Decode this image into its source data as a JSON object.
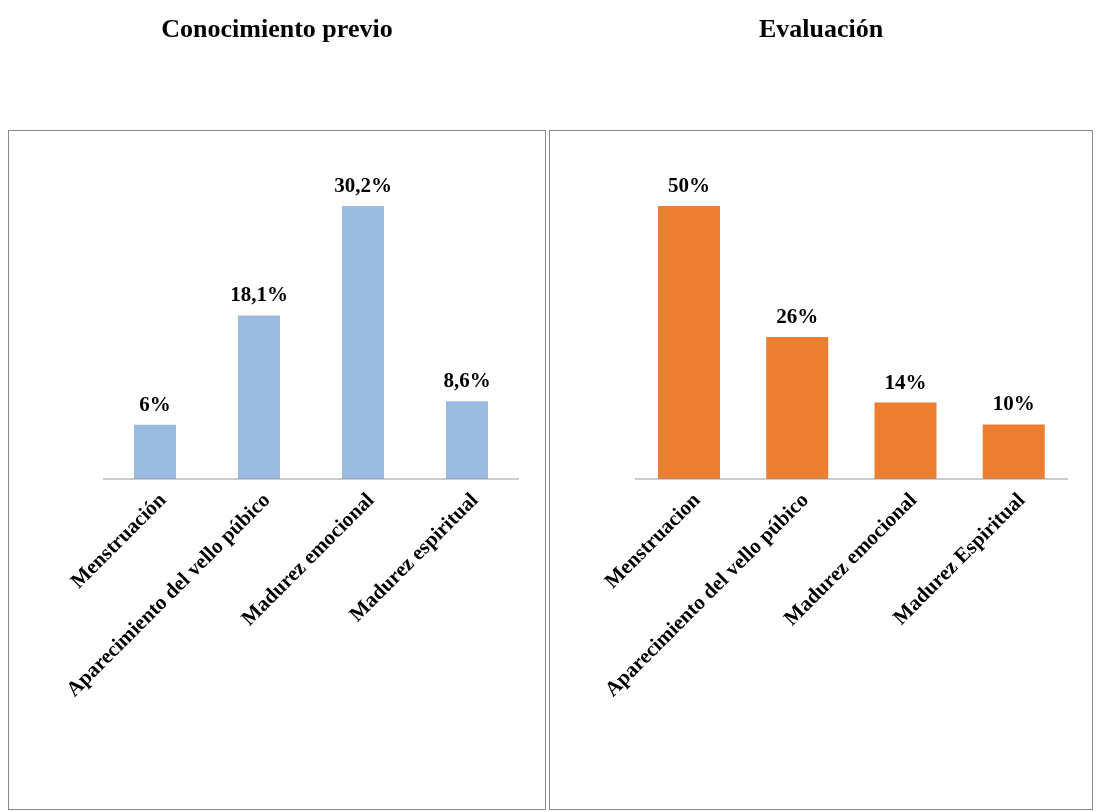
{
  "chart_data": [
    {
      "type": "bar",
      "title": "Conocimiento previo",
      "categories": [
        "Menstruación",
        "Aparecimiento del vello púbico",
        "Madurez emocional",
        "Madurez espiritual"
      ],
      "values": [
        6,
        18.1,
        30.2,
        8.6
      ],
      "value_labels": [
        "6%",
        "18,1%",
        "30,2%",
        "8,6%"
      ],
      "color": "#9bbbe0"
    },
    {
      "type": "bar",
      "title": "Evaluación",
      "categories": [
        "Menstruacion",
        "Aparecimiento del vello púbico",
        "Madurez emocional",
        "Madurez Espiritual"
      ],
      "values": [
        50,
        26,
        14,
        10
      ],
      "value_labels": [
        "50%",
        "26%",
        "14%",
        "10%"
      ],
      "color": "#ed7d31"
    }
  ]
}
